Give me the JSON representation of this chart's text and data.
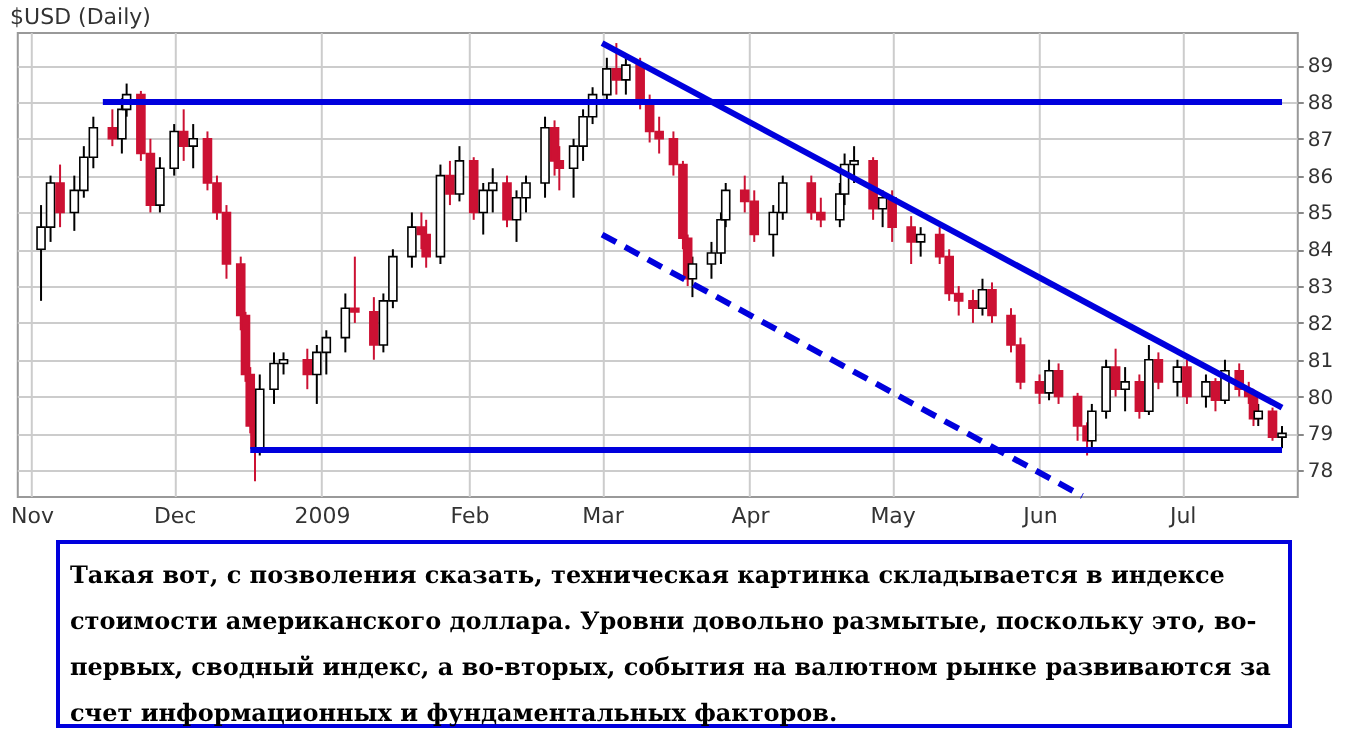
{
  "chart_data": {
    "type": "candlestick",
    "title": "$USD (Daily)",
    "x": [
      "2008-11-03",
      "2008-11-05",
      "2008-11-07",
      "2008-11-10",
      "2008-11-12",
      "2008-11-14",
      "2008-11-18",
      "2008-11-20",
      "2008-11-21",
      "2008-11-24",
      "2008-11-26",
      "2008-11-28",
      "2008-12-01",
      "2008-12-03",
      "2008-12-05",
      "2008-12-08",
      "2008-12-10",
      "2008-12-12",
      "2008-12-15",
      "2008-12-16",
      "2008-12-17",
      "2008-12-18",
      "2008-12-19",
      "2008-12-22",
      "2008-12-24",
      "2008-12-29",
      "2008-12-31",
      "2009-01-02",
      "2009-01-06",
      "2009-01-08",
      "2009-01-12",
      "2009-01-14",
      "2009-01-16",
      "2009-01-20",
      "2009-01-22",
      "2009-01-23",
      "2009-01-26",
      "2009-01-28",
      "2009-01-30",
      "2009-02-02",
      "2009-02-04",
      "2009-02-06",
      "2009-02-09",
      "2009-02-11",
      "2009-02-13",
      "2009-02-17",
      "2009-02-19",
      "2009-02-20",
      "2009-02-23",
      "2009-02-25",
      "2009-02-27",
      "2009-03-02",
      "2009-03-04",
      "2009-03-06",
      "2009-03-09",
      "2009-03-11",
      "2009-03-13",
      "2009-03-16",
      "2009-03-18",
      "2009-03-19",
      "2009-03-20",
      "2009-03-24",
      "2009-03-26",
      "2009-03-27",
      "2009-03-31",
      "2009-04-02",
      "2009-04-06",
      "2009-04-08",
      "2009-04-14",
      "2009-04-16",
      "2009-04-20",
      "2009-04-21",
      "2009-04-23",
      "2009-04-27",
      "2009-04-29",
      "2009-05-01",
      "2009-05-05",
      "2009-05-07",
      "2009-05-11",
      "2009-05-13",
      "2009-05-15",
      "2009-05-18",
      "2009-05-20",
      "2009-05-22",
      "2009-05-26",
      "2009-05-28",
      "2009-06-01",
      "2009-06-03",
      "2009-06-05",
      "2009-06-09",
      "2009-06-11",
      "2009-06-12",
      "2009-06-15",
      "2009-06-17",
      "2009-06-19",
      "2009-06-22",
      "2009-06-24",
      "2009-06-26",
      "2009-06-30",
      "2009-07-02",
      "2009-07-06",
      "2009-07-08",
      "2009-07-10",
      "2009-07-13",
      "2009-07-15",
      "2009-07-16",
      "2009-07-17",
      "2009-07-20",
      "2009-07-22"
    ],
    "ohlc": [
      [
        84.0,
        85.2,
        82.6,
        84.6
      ],
      [
        84.6,
        86.0,
        84.2,
        85.8
      ],
      [
        85.8,
        86.3,
        84.6,
        85.0
      ],
      [
        85.0,
        86.0,
        84.5,
        85.6
      ],
      [
        85.6,
        86.8,
        85.4,
        86.5
      ],
      [
        86.5,
        87.6,
        86.2,
        87.3
      ],
      [
        87.3,
        87.8,
        86.8,
        87.0
      ],
      [
        87.0,
        88.1,
        86.6,
        87.8
      ],
      [
        87.8,
        88.5,
        87.6,
        88.2
      ],
      [
        88.2,
        88.3,
        86.4,
        86.6
      ],
      [
        86.6,
        87.0,
        85.0,
        85.2
      ],
      [
        85.2,
        86.5,
        85.0,
        86.2
      ],
      [
        86.2,
        87.4,
        86.0,
        87.2
      ],
      [
        87.2,
        87.8,
        86.4,
        86.8
      ],
      [
        86.8,
        87.4,
        86.2,
        87.0
      ],
      [
        87.0,
        87.2,
        85.6,
        85.8
      ],
      [
        85.8,
        86.0,
        84.8,
        85.0
      ],
      [
        85.0,
        85.2,
        83.2,
        83.6
      ],
      [
        83.6,
        83.8,
        81.8,
        82.2
      ],
      [
        82.2,
        82.3,
        80.4,
        80.6
      ],
      [
        80.6,
        80.8,
        79.0,
        79.2
      ],
      [
        79.2,
        79.4,
        77.7,
        78.6
      ],
      [
        78.6,
        80.6,
        78.4,
        80.2
      ],
      [
        80.2,
        81.2,
        79.8,
        80.9
      ],
      [
        80.9,
        81.2,
        80.6,
        81.0
      ],
      [
        81.0,
        81.3,
        80.2,
        80.6
      ],
      [
        80.6,
        81.4,
        79.8,
        81.2
      ],
      [
        81.2,
        81.8,
        80.6,
        81.6
      ],
      [
        81.6,
        82.8,
        81.2,
        82.4
      ],
      [
        82.4,
        83.8,
        82.0,
        82.3
      ],
      [
        82.3,
        82.7,
        81.0,
        81.4
      ],
      [
        81.4,
        82.8,
        81.2,
        82.6
      ],
      [
        82.6,
        84.0,
        82.4,
        83.8
      ],
      [
        83.8,
        85.0,
        83.5,
        84.6
      ],
      [
        84.6,
        85.0,
        84.0,
        84.4
      ],
      [
        84.4,
        84.8,
        83.5,
        83.8
      ],
      [
        83.8,
        86.3,
        83.6,
        86.0
      ],
      [
        86.0,
        86.4,
        85.2,
        85.5
      ],
      [
        85.5,
        86.8,
        85.3,
        86.4
      ],
      [
        86.4,
        86.5,
        84.8,
        85.0
      ],
      [
        85.0,
        85.8,
        84.4,
        85.6
      ],
      [
        85.6,
        86.2,
        85.0,
        85.8
      ],
      [
        85.8,
        86.0,
        84.6,
        84.8
      ],
      [
        84.8,
        85.6,
        84.2,
        85.4
      ],
      [
        85.4,
        86.0,
        85.0,
        85.8
      ],
      [
        85.8,
        87.6,
        85.4,
        87.3
      ],
      [
        87.3,
        87.5,
        86.0,
        86.4
      ],
      [
        86.4,
        86.8,
        85.6,
        86.2
      ],
      [
        86.2,
        87.0,
        85.4,
        86.8
      ],
      [
        86.8,
        87.8,
        86.4,
        87.6
      ],
      [
        87.6,
        88.4,
        87.4,
        88.2
      ],
      [
        88.2,
        89.2,
        88.0,
        88.9
      ],
      [
        88.9,
        89.6,
        88.2,
        88.6
      ],
      [
        88.6,
        89.2,
        88.2,
        89.0
      ],
      [
        89.0,
        89.2,
        87.8,
        88.0
      ],
      [
        88.0,
        88.2,
        86.9,
        87.2
      ],
      [
        87.2,
        87.6,
        86.6,
        87.0
      ],
      [
        87.0,
        87.2,
        86.0,
        86.3
      ],
      [
        86.3,
        86.4,
        84.0,
        84.3
      ],
      [
        84.3,
        84.4,
        83.0,
        83.2
      ],
      [
        83.2,
        83.8,
        82.7,
        83.6
      ],
      [
        83.6,
        84.2,
        83.2,
        83.9
      ],
      [
        83.9,
        85.0,
        83.6,
        84.8
      ],
      [
        84.8,
        85.8,
        84.6,
        85.6
      ],
      [
        85.6,
        86.0,
        85.0,
        85.3
      ],
      [
        85.3,
        85.6,
        84.2,
        84.4
      ],
      [
        84.4,
        85.2,
        83.8,
        85.0
      ],
      [
        85.0,
        86.0,
        84.8,
        85.8
      ],
      [
        85.8,
        86.0,
        84.8,
        85.0
      ],
      [
        85.0,
        85.4,
        84.6,
        84.8
      ],
      [
        84.8,
        85.8,
        84.6,
        85.5
      ],
      [
        85.5,
        86.6,
        85.2,
        86.3
      ],
      [
        86.3,
        86.8,
        85.8,
        86.4
      ],
      [
        86.4,
        86.5,
        84.8,
        85.1
      ],
      [
        85.1,
        85.6,
        84.6,
        85.4
      ],
      [
        85.4,
        85.6,
        84.2,
        84.6
      ],
      [
        84.6,
        84.9,
        83.6,
        84.2
      ],
      [
        84.2,
        84.6,
        83.8,
        84.4
      ],
      [
        84.4,
        84.6,
        83.6,
        83.8
      ],
      [
        83.8,
        84.0,
        82.6,
        82.8
      ],
      [
        82.8,
        83.0,
        82.2,
        82.6
      ],
      [
        82.6,
        82.9,
        82.0,
        82.4
      ],
      [
        82.4,
        83.2,
        82.2,
        82.9
      ],
      [
        82.9,
        83.1,
        82.0,
        82.2
      ],
      [
        82.2,
        82.4,
        81.2,
        81.4
      ],
      [
        81.4,
        81.6,
        80.2,
        80.4
      ],
      [
        80.4,
        80.6,
        79.8,
        80.1
      ],
      [
        80.1,
        81.0,
        79.9,
        80.7
      ],
      [
        80.7,
        80.9,
        79.8,
        80.0
      ],
      [
        80.0,
        80.1,
        78.8,
        79.2
      ],
      [
        79.2,
        79.3,
        78.4,
        78.8
      ],
      [
        78.8,
        79.8,
        78.6,
        79.6
      ],
      [
        79.6,
        81.0,
        79.4,
        80.8
      ],
      [
        80.8,
        81.3,
        80.0,
        80.2
      ],
      [
        80.2,
        80.8,
        79.6,
        80.4
      ],
      [
        80.4,
        80.6,
        79.4,
        79.6
      ],
      [
        79.6,
        81.4,
        79.5,
        81.0
      ],
      [
        81.0,
        81.2,
        80.2,
        80.4
      ],
      [
        80.4,
        81.0,
        80.0,
        80.8
      ],
      [
        80.8,
        81.0,
        79.8,
        80.0
      ],
      [
        80.0,
        80.6,
        79.7,
        80.4
      ],
      [
        80.4,
        80.5,
        79.6,
        79.9
      ],
      [
        79.9,
        81.0,
        79.8,
        80.7
      ],
      [
        80.7,
        80.9,
        80.0,
        80.2
      ],
      [
        80.2,
        80.4,
        79.8,
        80.0
      ],
      [
        80.0,
        80.2,
        79.2,
        79.4
      ],
      [
        79.4,
        79.8,
        79.2,
        79.6
      ],
      [
        79.6,
        79.7,
        78.8,
        78.9
      ],
      [
        78.9,
        79.2,
        78.6,
        79.0
      ]
    ],
    "series": [
      {
        "type": "line",
        "color": "#0000dd",
        "line_style": "solid",
        "x": [
          "2008-11-16",
          "2009-07-22"
        ],
        "values": [
          88.0,
          88.0
        ]
      },
      {
        "type": "line",
        "color": "#0000dd",
        "line_style": "solid",
        "x": [
          "2008-12-17",
          "2009-07-22"
        ],
        "values": [
          78.55,
          78.55
        ]
      },
      {
        "type": "line",
        "color": "#0000dd",
        "line_style": "solid",
        "x": [
          "2009-03-01",
          "2009-07-22"
        ],
        "values": [
          89.6,
          79.7
        ]
      },
      {
        "type": "line",
        "color": "#0000dd",
        "line_style": "dashed",
        "x": [
          "2009-03-01",
          "2009-06-10"
        ],
        "values": [
          84.4,
          77.3
        ]
      }
    ],
    "xlim": [
      "2008-10-31",
      "2009-07-23"
    ],
    "xticks": [
      {
        "value": "2008-11-01",
        "label": "Nov"
      },
      {
        "value": "2008-12-01",
        "label": "Dec"
      },
      {
        "value": "2009-01-01",
        "label": "2009"
      },
      {
        "value": "2009-02-01",
        "label": "Feb"
      },
      {
        "value": "2009-03-01",
        "label": "Mar"
      },
      {
        "value": "2009-04-01",
        "label": "Apr"
      },
      {
        "value": "2009-05-01",
        "label": "May"
      },
      {
        "value": "2009-06-01",
        "label": "Jun"
      },
      {
        "value": "2009-07-01",
        "label": "Jul"
      }
    ],
    "ylim": [
      77.3,
      89.9
    ],
    "yticks": [
      78,
      79,
      80,
      81,
      82,
      83,
      84,
      85,
      86,
      87,
      88,
      89
    ],
    "grid": true,
    "annotations": [
      "Такая вот, с позволения сказать, техническая картинка складывается в индексе стоимости американского доллара. Уровни довольно размытые, поскольку это, во-первых, сводный индекс, а во-вторых, события на валютном рынке развиваются за счет информационных и фундаментальных факторов."
    ]
  }
}
